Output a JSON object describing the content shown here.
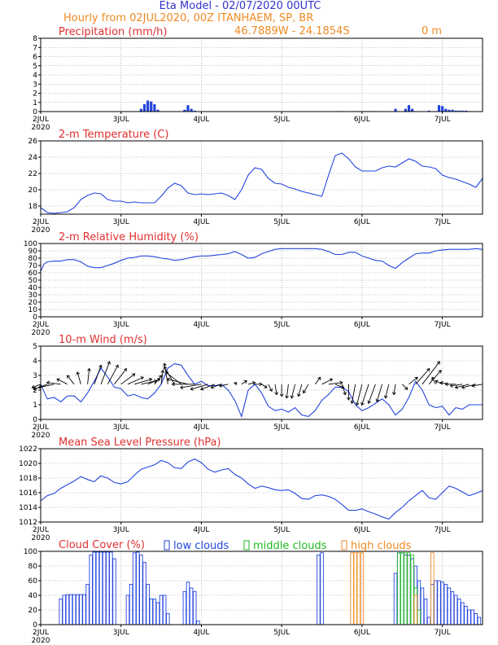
{
  "header": {
    "model_title": "Eta Model - 02/07/2020 00UTC",
    "subtitle": "Hourly from 02JUL2020, 00Z  ITANHAEM, SP, BR",
    "location_coords": "46.7889W - 24.1854S",
    "elevation": "0   m"
  },
  "colors": {
    "title_blue": "#3333cc",
    "subtitle_orange": "#f08a24",
    "panel_title_red": "#e03030",
    "series_blue": "#2244dd",
    "low_clouds": "#2244dd",
    "middle_clouds": "#22bb22",
    "high_clouds": "#f08a24",
    "grid": "#888888"
  },
  "x_axis": {
    "ticks": [
      {
        "hour": 0,
        "label": "2JUL",
        "sublabel": "2020"
      },
      {
        "hour": 24,
        "label": "3JUL"
      },
      {
        "hour": 48,
        "label": "4JUL"
      },
      {
        "hour": 72,
        "label": "5JUL"
      },
      {
        "hour": 96,
        "label": "6JUL"
      },
      {
        "hour": 120,
        "label": "7JUL"
      }
    ],
    "xlim_hours": [
      0,
      132
    ]
  },
  "chart_data": [
    {
      "type": "bar",
      "id": "precip",
      "title": "Precipitation (mm/h)",
      "ylim": [
        0,
        8
      ],
      "yticks": [
        0,
        1,
        2,
        3,
        4,
        5,
        6,
        7,
        8
      ],
      "x_hours": [
        30,
        31,
        32,
        33,
        34,
        35,
        43,
        44,
        45,
        46,
        88,
        89,
        90,
        94,
        95,
        96,
        97,
        98,
        99,
        100,
        101,
        106,
        107,
        109,
        110,
        111,
        116,
        118,
        119,
        120,
        121,
        122,
        123,
        124,
        125,
        126,
        127,
        128,
        129
      ],
      "values": [
        0.3,
        0.8,
        1.2,
        1.1,
        0.8,
        0.2,
        0.2,
        0.7,
        0.3,
        0.1,
        0.05,
        0.05,
        0.05,
        0.05,
        0.05,
        0.05,
        0.05,
        0.05,
        0.05,
        0.05,
        0.05,
        0.3,
        0.05,
        0.3,
        0.7,
        0.3,
        0.1,
        0.05,
        0.7,
        0.6,
        0.3,
        0.2,
        0.2,
        0.1,
        0.1,
        0.1,
        0.1,
        0.05,
        0.05
      ]
    },
    {
      "type": "line",
      "id": "temperature",
      "title": "2-m Temperature (C)",
      "ylim": [
        17,
        26
      ],
      "yticks": [
        18,
        20,
        22,
        24,
        26
      ],
      "x_hours": [
        0,
        2,
        4,
        8,
        10,
        12,
        14,
        16,
        18,
        20,
        22,
        24,
        26,
        28,
        30,
        32,
        34,
        36,
        38,
        40,
        42,
        44,
        46,
        48,
        50,
        52,
        54,
        56,
        58,
        60,
        62,
        64,
        66,
        68,
        70,
        72,
        74,
        76,
        78,
        80,
        82,
        84,
        86,
        88,
        90,
        92,
        94,
        96,
        98,
        100,
        102,
        104,
        106,
        108,
        110,
        112,
        114,
        116,
        118,
        120,
        122,
        124,
        126,
        128,
        130,
        132
      ],
      "values": [
        17.8,
        17.2,
        17.1,
        17.3,
        17.8,
        18.8,
        19.3,
        19.6,
        19.5,
        18.8,
        18.6,
        18.6,
        18.4,
        18.5,
        18.4,
        18.4,
        18.4,
        19.2,
        20.2,
        20.8,
        20.5,
        19.6,
        19.4,
        19.5,
        19.4,
        19.5,
        19.6,
        19.3,
        18.8,
        20.0,
        21.8,
        22.7,
        22.5,
        21.4,
        20.8,
        20.7,
        20.3,
        20.1,
        19.8,
        19.6,
        19.4,
        19.2,
        21.8,
        24.2,
        24.5,
        23.8,
        22.8,
        22.3,
        22.3,
        22.3,
        22.7,
        22.9,
        22.8,
        23.3,
        23.8,
        23.5,
        22.9,
        22.8,
        22.6,
        21.8,
        21.5,
        21.3,
        21.0,
        20.7,
        20.3,
        21.4
      ]
    },
    {
      "type": "line",
      "id": "humidity",
      "title": "2-m Relative Humidity (%)",
      "ylim": [
        0,
        100
      ],
      "yticks": [
        0,
        10,
        20,
        30,
        40,
        50,
        60,
        70,
        80,
        90,
        100
      ],
      "x_hours": [
        0,
        1,
        2,
        4,
        6,
        8,
        10,
        12,
        14,
        16,
        18,
        20,
        22,
        24,
        26,
        28,
        30,
        32,
        34,
        36,
        38,
        40,
        42,
        44,
        46,
        48,
        50,
        52,
        54,
        56,
        58,
        60,
        62,
        64,
        66,
        68,
        70,
        72,
        74,
        76,
        78,
        80,
        82,
        84,
        86,
        88,
        90,
        92,
        94,
        96,
        98,
        100,
        102,
        104,
        106,
        108,
        110,
        112,
        114,
        116,
        118,
        120,
        122,
        124,
        126,
        128,
        130,
        132
      ],
      "values": [
        62,
        72,
        75,
        76,
        76,
        78,
        78,
        75,
        69,
        67,
        67,
        70,
        73,
        77,
        80,
        81,
        83,
        83,
        82,
        80,
        79,
        77,
        78,
        80,
        82,
        83,
        83,
        84,
        85,
        86,
        89,
        85,
        80,
        81,
        86,
        89,
        92,
        93,
        93,
        93,
        93,
        93,
        93,
        92,
        89,
        85,
        85,
        88,
        88,
        83,
        80,
        77,
        76,
        70,
        66,
        74,
        80,
        86,
        87,
        87,
        90,
        91,
        92,
        92,
        92,
        92,
        93,
        92
      ]
    },
    {
      "type": "line",
      "id": "wind",
      "title": "10-m Wind (m/s)",
      "ylim": [
        0,
        5
      ],
      "yticks": [
        0,
        1,
        2,
        3,
        4,
        5
      ],
      "x_hours": [
        0,
        2,
        4,
        6,
        8,
        10,
        12,
        14,
        16,
        18,
        20,
        22,
        24,
        26,
        28,
        30,
        32,
        34,
        36,
        38,
        40,
        42,
        44,
        46,
        48,
        50,
        52,
        54,
        56,
        58,
        60,
        62,
        64,
        66,
        68,
        70,
        72,
        74,
        76,
        78,
        80,
        82,
        84,
        86,
        88,
        90,
        92,
        94,
        96,
        98,
        100,
        102,
        104,
        106,
        108,
        110,
        112,
        114,
        116,
        118,
        120,
        122,
        124,
        126,
        128,
        130,
        132
      ],
      "values": [
        2.4,
        1.4,
        1.5,
        1.2,
        1.6,
        1.6,
        1.2,
        1.8,
        2.6,
        3.5,
        2.9,
        2.2,
        2.1,
        1.6,
        1.7,
        1.5,
        1.4,
        1.8,
        2.4,
        3.5,
        3.8,
        3.7,
        3.0,
        2.4,
        2.6,
        2.3,
        2.3,
        2.4,
        2.0,
        1.3,
        0.2,
        2.0,
        2.4,
        1.8,
        0.9,
        0.6,
        0.7,
        0.5,
        0.8,
        0.3,
        0.2,
        0.6,
        1.3,
        1.7,
        2.2,
        2.2,
        1.9,
        1.0,
        0.6,
        0.8,
        1.1,
        1.4,
        1.0,
        0.3,
        0.7,
        1.5,
        2.6,
        2.0,
        1.0,
        0.8,
        0.9,
        0.3,
        0.8,
        0.7,
        1.0,
        1.0,
        1.0
      ],
      "barbs": {
        "unit": "m/s",
        "baseline": 2.4,
        "x_hours": [
          0,
          2,
          4,
          6,
          8,
          10,
          12,
          14,
          16,
          18,
          20,
          22,
          24,
          26,
          28,
          30,
          32,
          34,
          36,
          38,
          40,
          42,
          44,
          46,
          48,
          50,
          52,
          54,
          56,
          58,
          60,
          62,
          64,
          66,
          68,
          70,
          72,
          74,
          76,
          78,
          80,
          82,
          84,
          86,
          88,
          90,
          92,
          94,
          96,
          98,
          100,
          102,
          104,
          106,
          108,
          110,
          112,
          114,
          116,
          118,
          120,
          122,
          124,
          126,
          128,
          130,
          132
        ],
        "u": [
          -0.5,
          -0.8,
          -0.9,
          -0.8,
          -0.6,
          -0.4,
          -0.2,
          0.1,
          0.4,
          0.5,
          0.6,
          0.7,
          0.8,
          0.9,
          1.0,
          0.9,
          0.7,
          0.4,
          0.1,
          -0.2,
          -0.6,
          -0.9,
          -1.2,
          -1.3,
          -1.2,
          -1.0,
          -0.8,
          -0.6,
          -0.5,
          0.1,
          0.3,
          0.4,
          0.4,
          0.3,
          0.2,
          0.1,
          0.0,
          -0.1,
          -0.2,
          -0.2,
          -0.3,
          0.3,
          0.6,
          0.8,
          0.5,
          0.2,
          0.0,
          -0.2,
          -0.3,
          -0.4,
          -0.4,
          -0.3,
          -0.2,
          -0.1,
          0.3,
          0.5,
          0.8,
          1.0,
          0.7,
          -0.2,
          -0.4,
          -0.5,
          -0.6,
          -0.7,
          -0.8,
          -0.8,
          -0.6
        ],
        "v": [
          -0.2,
          -0.3,
          -0.2,
          0.1,
          0.3,
          0.5,
          0.7,
          0.9,
          1.1,
          1.3,
          1.1,
          0.9,
          0.6,
          0.4,
          0.3,
          0.2,
          0.3,
          0.5,
          0.8,
          1.2,
          1.0,
          0.7,
          0.3,
          0.0,
          -0.2,
          -0.3,
          -0.3,
          -0.2,
          -0.1,
          0.1,
          0.2,
          0.1,
          0.0,
          -0.2,
          -0.4,
          -0.6,
          -0.7,
          -0.8,
          -0.8,
          -0.7,
          -0.5,
          0.4,
          0.3,
          0.1,
          -0.2,
          -0.6,
          -0.9,
          -1.1,
          -1.2,
          -1.2,
          -1.1,
          -1.0,
          -0.8,
          -0.6,
          -0.3,
          0.4,
          0.9,
          1.3,
          0.8,
          0.4,
          0.2,
          0.1,
          0.0,
          -0.1,
          -0.2,
          -0.2,
          -0.1
        ]
      }
    },
    {
      "type": "line",
      "id": "pressure",
      "title": "Mean Sea Level Pressure (hPa)",
      "ylim": [
        1012,
        1022
      ],
      "yticks": [
        1012,
        1014,
        1016,
        1018,
        1020,
        1022
      ],
      "x_hours": [
        0,
        2,
        4,
        6,
        8,
        10,
        12,
        14,
        16,
        18,
        20,
        22,
        24,
        26,
        28,
        30,
        32,
        34,
        36,
        38,
        40,
        42,
        44,
        46,
        48,
        50,
        52,
        54,
        56,
        58,
        60,
        62,
        64,
        66,
        68,
        70,
        72,
        74,
        76,
        78,
        80,
        82,
        84,
        86,
        88,
        90,
        92,
        94,
        96,
        98,
        100,
        102,
        104,
        106,
        108,
        110,
        112,
        114,
        116,
        118,
        120,
        122,
        124,
        126,
        128,
        130,
        132
      ],
      "values": [
        1014.9,
        1015.6,
        1015.9,
        1016.6,
        1017.1,
        1017.6,
        1018.2,
        1017.8,
        1017.5,
        1018.3,
        1018.0,
        1017.4,
        1017.2,
        1017.5,
        1018.4,
        1019.2,
        1019.5,
        1019.8,
        1020.4,
        1020.1,
        1019.4,
        1019.3,
        1020.2,
        1020.6,
        1020.1,
        1019.2,
        1018.8,
        1019.1,
        1019.3,
        1018.5,
        1018.0,
        1017.2,
        1016.6,
        1016.9,
        1016.7,
        1016.4,
        1016.3,
        1016.4,
        1015.9,
        1015.2,
        1015.1,
        1015.6,
        1015.7,
        1015.5,
        1015.1,
        1014.4,
        1013.6,
        1013.6,
        1013.8,
        1013.4,
        1013.1,
        1012.7,
        1012.4,
        1013.3,
        1014.0,
        1014.9,
        1015.6,
        1016.3,
        1015.3,
        1015.1,
        1016.0,
        1016.9,
        1016.6,
        1016.1,
        1015.6,
        1015.9,
        1016.3
      ]
    },
    {
      "type": "bar",
      "id": "cloud_cover",
      "title": "Cloud Cover (%)",
      "ylim": [
        0,
        100
      ],
      "yticks": [
        0,
        20,
        40,
        60,
        80,
        100
      ],
      "legend": [
        {
          "key": "low",
          "label": "low clouds"
        },
        {
          "key": "mid",
          "label": "middle clouds"
        },
        {
          "key": "high",
          "label": "high clouds"
        }
      ],
      "series": [
        {
          "name": "low clouds",
          "key": "low",
          "x_hours": [
            6,
            7,
            8,
            9,
            10,
            11,
            12,
            13,
            14,
            15,
            16,
            17,
            18,
            19,
            20,
            21,
            22,
            26,
            27,
            28,
            29,
            30,
            31,
            32,
            33,
            34,
            35,
            36,
            37,
            38,
            43,
            44,
            45,
            46,
            47,
            83,
            84,
            106,
            107,
            108,
            109,
            110,
            111,
            112,
            113,
            114,
            115,
            116,
            117,
            118,
            119,
            120,
            121,
            122,
            123,
            124,
            125,
            126,
            127,
            128,
            129,
            130,
            131
          ],
          "values": [
            35,
            40,
            41,
            41,
            41,
            41,
            41,
            41,
            55,
            95,
            99,
            99,
            99,
            99,
            99,
            99,
            90,
            40,
            55,
            98,
            99,
            95,
            85,
            55,
            35,
            35,
            30,
            40,
            40,
            15,
            45,
            58,
            50,
            45,
            5,
            95,
            98,
            70,
            98,
            98,
            95,
            95,
            90,
            80,
            60,
            50,
            35,
            10,
            55,
            60,
            60,
            58,
            55,
            50,
            45,
            40,
            35,
            30,
            25,
            20,
            20,
            15,
            10
          ]
        },
        {
          "name": "middle clouds",
          "key": "mid",
          "x_hours": [
            107,
            108,
            109,
            110,
            111,
            112,
            113
          ],
          "values": [
            98,
            98,
            98,
            98,
            95,
            50,
            20
          ]
        },
        {
          "name": "high clouds",
          "key": "high",
          "x_hours": [
            93,
            94,
            95,
            96,
            112,
            117
          ],
          "values": [
            98,
            98,
            98,
            98,
            40,
            98
          ]
        }
      ]
    }
  ]
}
